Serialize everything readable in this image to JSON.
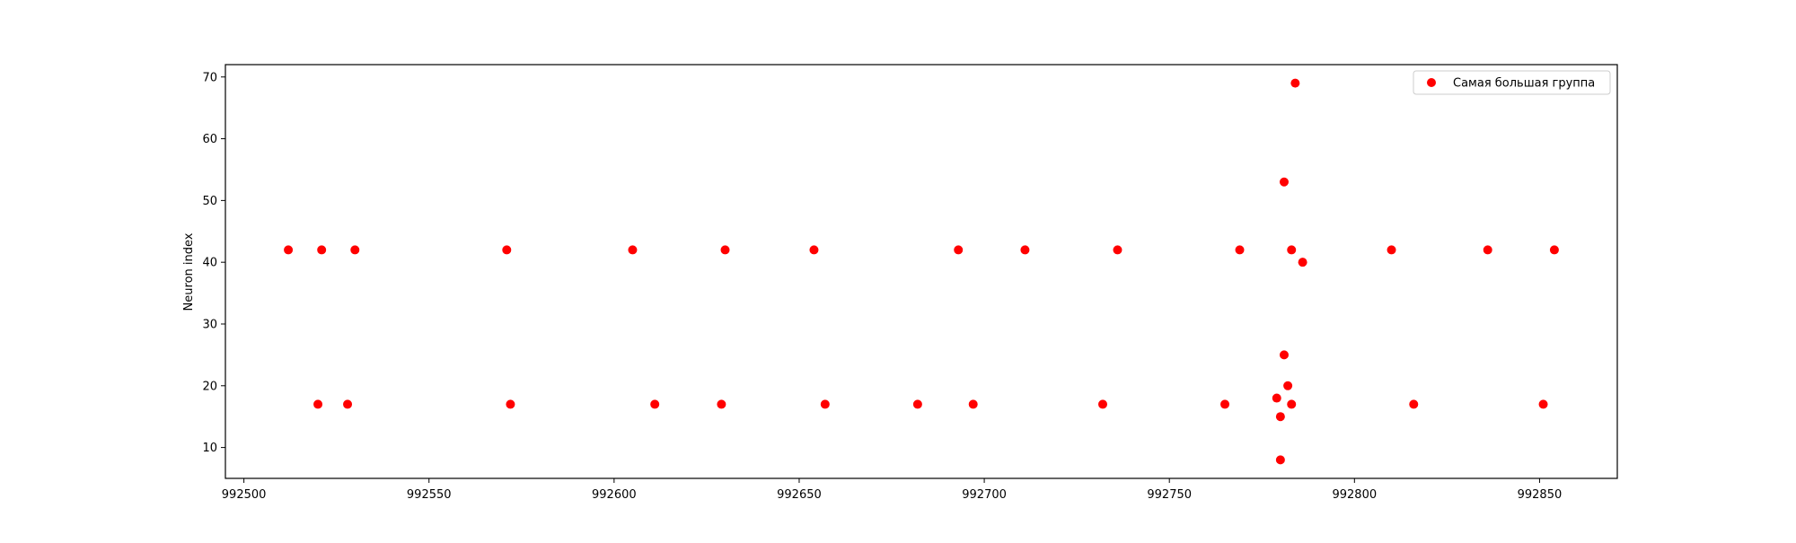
{
  "chart_data": {
    "type": "scatter",
    "title": "",
    "xlabel": "",
    "ylabel": "Neuron index",
    "xlim": [
      992495,
      992871
    ],
    "ylim": [
      5,
      72
    ],
    "xticks": [
      992500,
      992550,
      992600,
      992650,
      992700,
      992750,
      992800,
      992850
    ],
    "yticks": [
      10,
      20,
      30,
      40,
      50,
      60,
      70
    ],
    "grid": false,
    "legend_position": "top-right",
    "series": [
      {
        "name": "Самая большая группа",
        "color": "#ff0000",
        "x": [
          992512,
          992521,
          992530,
          992571,
          992605,
          992630,
          992654,
          992693,
          992711,
          992736,
          992769,
          992783,
          992810,
          992836,
          992854,
          992520,
          992528,
          992572,
          992611,
          992629,
          992657,
          992682,
          992697,
          992732,
          992765,
          992783,
          992816,
          992851,
          992784,
          992781,
          992786,
          992781,
          992782,
          992779,
          992780,
          992780
        ],
        "y": [
          42,
          42,
          42,
          42,
          42,
          42,
          42,
          42,
          42,
          42,
          42,
          42,
          42,
          42,
          42,
          17,
          17,
          17,
          17,
          17,
          17,
          17,
          17,
          17,
          17,
          17,
          17,
          17,
          69,
          53,
          40,
          25,
          20,
          18,
          15,
          8
        ]
      }
    ]
  }
}
